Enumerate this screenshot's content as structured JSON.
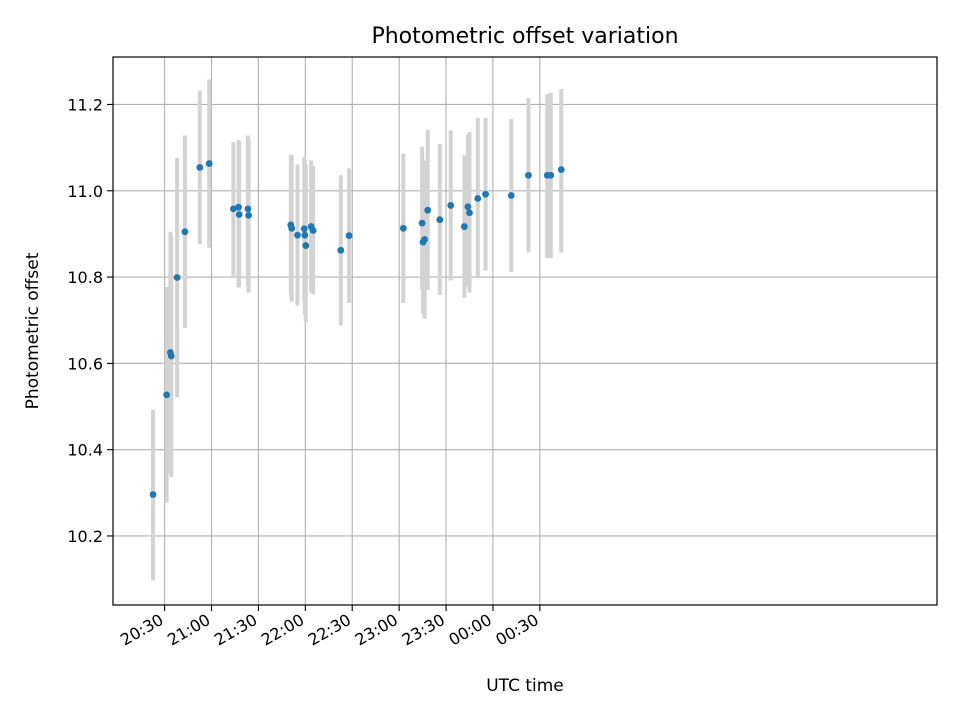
{
  "chart_data": {
    "type": "scatter",
    "title": "Photometric offset variation",
    "xlabel": "UTC time",
    "ylabel": "Photometric offset",
    "x_unit": "minutes",
    "xlim": [
      1197,
      1724
    ],
    "ylim": [
      10.04,
      11.31
    ],
    "grid": true,
    "x_ticks": [
      {
        "value": 1230,
        "label": "20:30"
      },
      {
        "value": 1260,
        "label": "21:00"
      },
      {
        "value": 1290,
        "label": "21:30"
      },
      {
        "value": 1320,
        "label": "22:00"
      },
      {
        "value": 1350,
        "label": "22:30"
      },
      {
        "value": 1380,
        "label": "23:00"
      },
      {
        "value": 1410,
        "label": "23:30"
      },
      {
        "value": 1440,
        "label": "00:00"
      },
      {
        "value": 1470,
        "label": "00:30"
      }
    ],
    "y_ticks": [
      {
        "value": 10.2,
        "label": "10.2"
      },
      {
        "value": 10.4,
        "label": "10.4"
      },
      {
        "value": 10.6,
        "label": "10.6"
      },
      {
        "value": 10.8,
        "label": "10.8"
      },
      {
        "value": 11.0,
        "label": "11.0"
      },
      {
        "value": 11.2,
        "label": "11.2"
      }
    ],
    "colors": {
      "point": "#1f77b4",
      "errorbar": "#d3d3d3",
      "grid": "#b0b0b0"
    },
    "series": [
      {
        "points": [
          {
            "x": 1222.6,
            "y": 10.296,
            "ylow": 10.097,
            "yhigh": 10.493
          },
          {
            "x": 1231.3,
            "y": 10.527,
            "ylow": 10.277,
            "yhigh": 10.777
          },
          {
            "x": 1233.7,
            "y": 10.625,
            "ylow": 10.345,
            "yhigh": 10.905
          },
          {
            "x": 1234.3,
            "y": 10.617,
            "ylow": 10.337,
            "yhigh": 10.897
          },
          {
            "x": 1238.0,
            "y": 10.799,
            "ylow": 10.522,
            "yhigh": 11.076
          },
          {
            "x": 1243.0,
            "y": 10.905,
            "ylow": 10.682,
            "yhigh": 11.128
          },
          {
            "x": 1252.5,
            "y": 11.054,
            "ylow": 10.876,
            "yhigh": 11.232
          },
          {
            "x": 1258.5,
            "y": 11.063,
            "ylow": 10.868,
            "yhigh": 11.258
          },
          {
            "x": 1274.0,
            "y": 10.958,
            "ylow": 10.803,
            "yhigh": 11.113
          },
          {
            "x": 1277.3,
            "y": 10.962,
            "ylow": 10.776,
            "yhigh": 11.118
          },
          {
            "x": 1277.7,
            "y": 10.945,
            "ylow": 10.776,
            "yhigh": 11.114
          },
          {
            "x": 1283.3,
            "y": 10.958,
            "ylow": 10.781,
            "yhigh": 11.128
          },
          {
            "x": 1283.7,
            "y": 10.943,
            "ylow": 10.764,
            "yhigh": 11.118
          },
          {
            "x": 1310.7,
            "y": 10.921,
            "ylow": 10.758,
            "yhigh": 11.084
          },
          {
            "x": 1311.3,
            "y": 10.913,
            "ylow": 10.743,
            "yhigh": 11.081
          },
          {
            "x": 1315.0,
            "y": 10.897,
            "ylow": 10.734,
            "yhigh": 11.061
          },
          {
            "x": 1319.3,
            "y": 10.912,
            "ylow": 10.746,
            "yhigh": 11.078
          },
          {
            "x": 1319.7,
            "y": 10.897,
            "ylow": 10.713,
            "yhigh": 11.072
          },
          {
            "x": 1320.3,
            "y": 10.873,
            "ylow": 10.696,
            "yhigh": 11.061
          },
          {
            "x": 1323.7,
            "y": 10.917,
            "ylow": 10.764,
            "yhigh": 11.07
          },
          {
            "x": 1325.0,
            "y": 10.908,
            "ylow": 10.76,
            "yhigh": 11.057
          },
          {
            "x": 1342.7,
            "y": 10.862,
            "ylow": 10.688,
            "yhigh": 11.036
          },
          {
            "x": 1348.0,
            "y": 10.896,
            "ylow": 10.74,
            "yhigh": 11.052
          },
          {
            "x": 1382.7,
            "y": 10.913,
            "ylow": 10.74,
            "yhigh": 11.086
          },
          {
            "x": 1394.7,
            "y": 10.925,
            "ylow": 10.772,
            "yhigh": 11.102
          },
          {
            "x": 1395.3,
            "y": 10.881,
            "ylow": 10.715,
            "yhigh": 11.07
          },
          {
            "x": 1396.3,
            "y": 10.887,
            "ylow": 10.703,
            "yhigh": 11.07
          },
          {
            "x": 1398.3,
            "y": 10.955,
            "ylow": 10.77,
            "yhigh": 11.141
          },
          {
            "x": 1406.0,
            "y": 10.933,
            "ylow": 10.758,
            "yhigh": 11.108
          },
          {
            "x": 1413.0,
            "y": 10.966,
            "ylow": 10.792,
            "yhigh": 11.14
          },
          {
            "x": 1421.7,
            "y": 10.917,
            "ylow": 10.752,
            "yhigh": 11.082
          },
          {
            "x": 1424.0,
            "y": 10.963,
            "ylow": 10.778,
            "yhigh": 11.13
          },
          {
            "x": 1425.0,
            "y": 10.949,
            "ylow": 10.764,
            "yhigh": 11.136
          },
          {
            "x": 1430.3,
            "y": 10.982,
            "ylow": 10.802,
            "yhigh": 11.169
          },
          {
            "x": 1435.3,
            "y": 10.992,
            "ylow": 10.815,
            "yhigh": 11.169
          },
          {
            "x": 1451.7,
            "y": 10.989,
            "ylow": 10.812,
            "yhigh": 11.166
          },
          {
            "x": 1462.7,
            "y": 11.036,
            "ylow": 10.857,
            "yhigh": 11.215
          },
          {
            "x": 1474.7,
            "y": 11.036,
            "ylow": 10.844,
            "yhigh": 11.224
          },
          {
            "x": 1477.0,
            "y": 11.036,
            "ylow": 10.844,
            "yhigh": 11.227
          },
          {
            "x": 1483.7,
            "y": 11.049,
            "ylow": 10.857,
            "yhigh": 11.236
          }
        ]
      }
    ]
  }
}
